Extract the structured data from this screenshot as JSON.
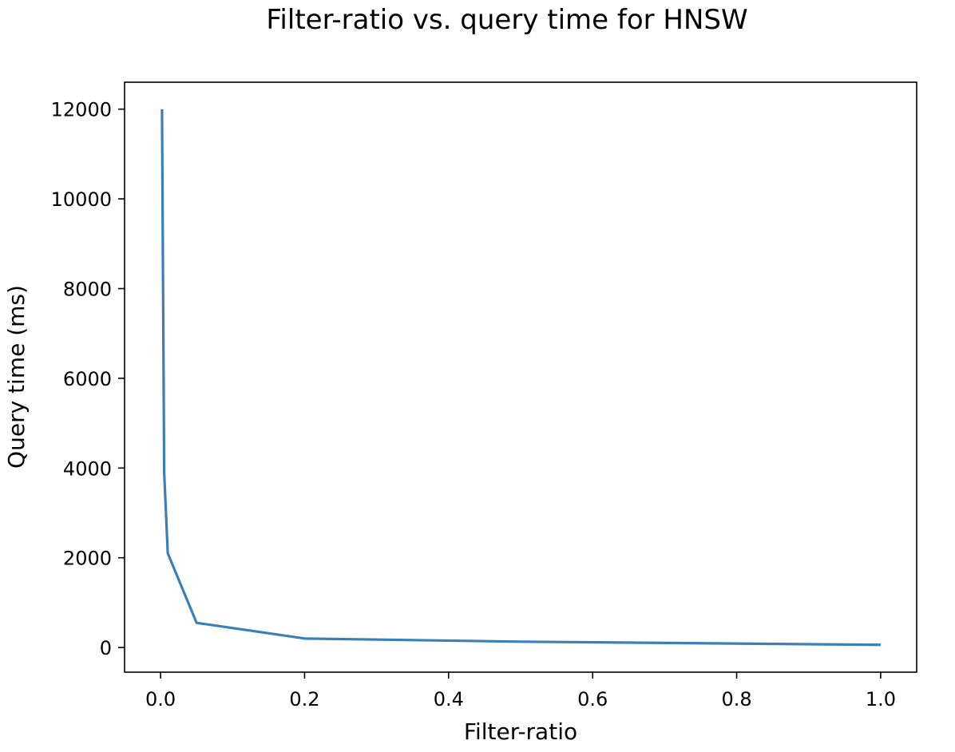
{
  "chart_data": {
    "type": "line",
    "title": "Filter-ratio vs. query time for HNSW",
    "xlabel": "Filter-ratio",
    "ylabel": "Query time (ms)",
    "xlim": [
      -0.05,
      1.05
    ],
    "ylim": [
      -550,
      12600
    ],
    "x_ticks": [
      0.0,
      0.2,
      0.4,
      0.6,
      0.8,
      1.0
    ],
    "x_tick_labels": [
      "0.0",
      "0.2",
      "0.4",
      "0.6",
      "0.8",
      "1.0"
    ],
    "y_ticks": [
      0,
      2000,
      4000,
      6000,
      8000,
      10000,
      12000
    ],
    "y_tick_labels": [
      "0",
      "2000",
      "4000",
      "6000",
      "8000",
      "10000",
      "12000"
    ],
    "grid": false,
    "series": [
      {
        "color": "#3b7fb8",
        "x": [
          0.002,
          0.005,
          0.01,
          0.05,
          0.2,
          0.5,
          1.0
        ],
        "y": [
          12000,
          3900,
          2100,
          550,
          200,
          130,
          60
        ]
      }
    ]
  }
}
